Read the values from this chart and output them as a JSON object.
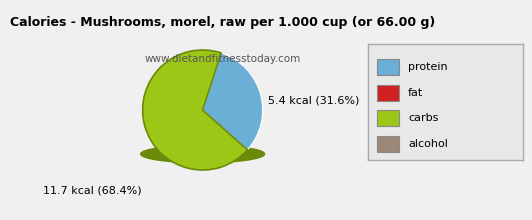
{
  "title": "Calories - Mushrooms, morel, raw per 1.000 cup (or 66.00 g)",
  "subtitle": "www.dietandfitnesstoday.com",
  "slices": [
    5.4,
    11.7
  ],
  "labels": [
    "5.4 kcal (31.6%)",
    "11.7 kcal (68.4%)"
  ],
  "slice_colors": [
    "#6baed6",
    "#9dc717"
  ],
  "shadow_color": "#6b8a0a",
  "legend_labels": [
    "protein",
    "fat",
    "carbs",
    "alcohol"
  ],
  "legend_colors": [
    "#6baed6",
    "#d02020",
    "#9dc717",
    "#9b8878"
  ],
  "title_fontsize": 9,
  "subtitle_fontsize": 7.5,
  "label_fontsize": 8,
  "bg_color": "#f0f0f0",
  "legend_bg_color": "#e8e8e8",
  "legend_border_color": "#aaaaaa",
  "startangle": 72
}
